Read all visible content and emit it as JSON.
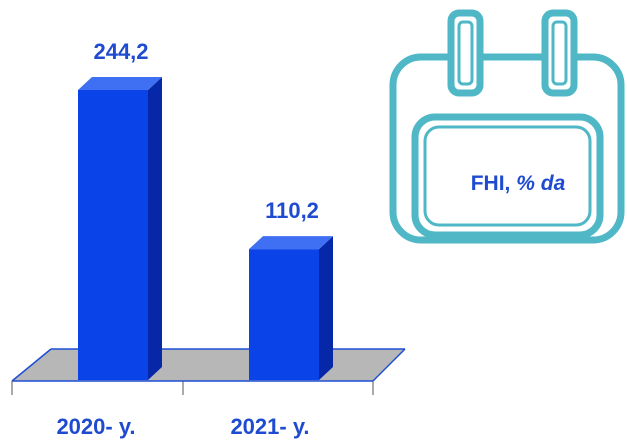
{
  "chart_data": {
    "type": "bar",
    "categories": [
      "2020- y.",
      "2021- y."
    ],
    "values": [
      244.2,
      110.2
    ],
    "data_labels": [
      "244,2",
      "110,2"
    ],
    "title": "",
    "xlabel": "",
    "ylabel": "",
    "grid": false,
    "legend": false,
    "style": "3d-column",
    "colors": {
      "bar_front": "#0a44e8",
      "bar_side": "#0627a8",
      "bar_top": "#3f6ff2",
      "floor": "#b7b7b7",
      "floor_edge": "#1d4fd6",
      "label_text": "#1f4bd1"
    }
  },
  "badge": {
    "title": "FHI,",
    "unit": "% da",
    "icon": "calendar-icon",
    "colors": {
      "frame": "#4fb7c6",
      "fill": "#ffffff"
    }
  }
}
